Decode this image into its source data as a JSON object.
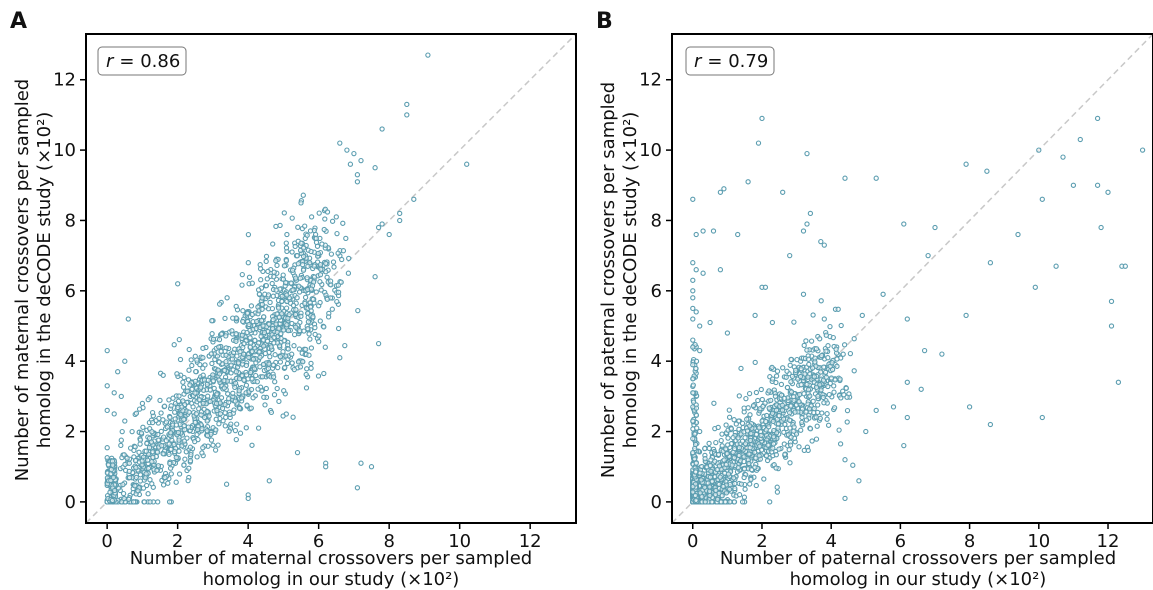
{
  "chart_data": [
    {
      "type": "scatter",
      "panel": "A",
      "r_symbol": "r",
      "r_value": "= 0.86",
      "xlabel_line1": "Number of maternal crossovers per sampled",
      "xlabel_line2": "homolog in our study (×10²)",
      "ylabel_line1": "Number of maternal crossovers per sampled",
      "ylabel_line2": "homolog in the deCODE study (×10²)",
      "xlim": [
        -0.6,
        13.3
      ],
      "ylim": [
        -0.6,
        13.3
      ],
      "xticks": [
        "0",
        "2",
        "4",
        "6",
        "8",
        "10",
        "12"
      ],
      "yticks": [
        "0",
        "2",
        "4",
        "6",
        "8",
        "10",
        "12"
      ],
      "diagonal": "y = x (dashed)",
      "point_color": "#5b9db0",
      "series": [
        {
          "values": [
            [
              9.1,
              12.7
            ],
            [
              8.5,
              11.3
            ],
            [
              8.5,
              11.0
            ],
            [
              6.6,
              10.2
            ],
            [
              7.8,
              10.6
            ],
            [
              6.8,
              10.0
            ],
            [
              7.0,
              9.9
            ],
            [
              7.2,
              9.7
            ],
            [
              6.9,
              9.6
            ],
            [
              7.1,
              9.3
            ],
            [
              7.1,
              9.1
            ],
            [
              7.6,
              9.5
            ],
            [
              10.2,
              9.6
            ],
            [
              8.7,
              8.6
            ],
            [
              5.5,
              8.5
            ],
            [
              5.8,
              8.1
            ],
            [
              6.5,
              8.1
            ],
            [
              8.3,
              8.2
            ],
            [
              8.3,
              8.0
            ],
            [
              7.8,
              7.9
            ],
            [
              7.7,
              7.8
            ],
            [
              8.0,
              7.6
            ],
            [
              7.7,
              4.5
            ],
            [
              7.6,
              6.4
            ],
            [
              6.6,
              4.1
            ],
            [
              7.2,
              1.1
            ],
            [
              7.5,
              1.0
            ],
            [
              7.1,
              0.4
            ],
            [
              6.2,
              1.1
            ],
            [
              6.2,
              1.0
            ],
            [
              4.6,
              0.6
            ],
            [
              4.0,
              0.2
            ],
            [
              4.0,
              0.1
            ],
            [
              0.6,
              5.2
            ],
            [
              0.0,
              4.3
            ],
            [
              0.0,
              3.3
            ],
            [
              0.2,
              3.1
            ],
            [
              2.0,
              6.2
            ],
            [
              0.5,
              4.0
            ],
            [
              0.3,
              3.7
            ],
            [
              0.0,
              2.6
            ],
            [
              0.4,
              3.0
            ],
            [
              1.0,
              2.8
            ],
            [
              0.2,
              2.5
            ],
            [
              0.5,
              2.3
            ],
            [
              5.4,
              1.4
            ]
          ]
        }
      ]
    },
    {
      "type": "scatter",
      "panel": "B",
      "r_symbol": "r",
      "r_value": "= 0.79",
      "xlabel_line1": "Number of paternal crossovers per sampled",
      "xlabel_line2": "homolog in our study (×10²)",
      "ylabel_line1": "Number of paternal crossovers per sampled",
      "ylabel_line2": "homolog in the deCODE study (×10²)",
      "xlim": [
        -0.6,
        13.3
      ],
      "ylim": [
        -0.6,
        13.3
      ],
      "xticks": [
        "0",
        "2",
        "4",
        "6",
        "8",
        "10",
        "12"
      ],
      "yticks": [
        "0",
        "2",
        "4",
        "6",
        "8",
        "10",
        "12"
      ],
      "diagonal": "y = x (dashed)",
      "point_color": "#5b9db0",
      "series": [
        {
          "values": [
            [
              2.0,
              10.9
            ],
            [
              11.7,
              10.9
            ],
            [
              1.9,
              10.2
            ],
            [
              11.2,
              10.3
            ],
            [
              10.0,
              10.0
            ],
            [
              13.0,
              10.0
            ],
            [
              3.3,
              9.9
            ],
            [
              0.0,
              8.6
            ],
            [
              0.9,
              8.9
            ],
            [
              0.8,
              8.8
            ],
            [
              1.6,
              9.1
            ],
            [
              2.6,
              8.8
            ],
            [
              4.4,
              9.2
            ],
            [
              5.3,
              9.2
            ],
            [
              7.9,
              9.6
            ],
            [
              8.5,
              9.4
            ],
            [
              10.7,
              9.8
            ],
            [
              11.0,
              9.0
            ],
            [
              11.7,
              9.0
            ],
            [
              12.0,
              8.8
            ],
            [
              10.1,
              8.6
            ],
            [
              3.4,
              8.2
            ],
            [
              3.3,
              7.9
            ],
            [
              3.2,
              7.7
            ],
            [
              3.7,
              7.4
            ],
            [
              3.8,
              7.3
            ],
            [
              2.8,
              7.0
            ],
            [
              6.1,
              7.9
            ],
            [
              6.8,
              7.0
            ],
            [
              7.0,
              7.8
            ],
            [
              9.4,
              7.6
            ],
            [
              11.8,
              7.8
            ],
            [
              0.1,
              7.6
            ],
            [
              0.3,
              7.7
            ],
            [
              0.6,
              7.7
            ],
            [
              1.3,
              7.6
            ],
            [
              0.0,
              6.8
            ],
            [
              0.1,
              6.6
            ],
            [
              0.0,
              6.3
            ],
            [
              0.3,
              6.5
            ],
            [
              0.8,
              6.6
            ],
            [
              2.0,
              6.1
            ],
            [
              2.1,
              6.1
            ],
            [
              3.2,
              5.9
            ],
            [
              5.5,
              5.9
            ],
            [
              8.6,
              6.8
            ],
            [
              10.5,
              6.7
            ],
            [
              12.4,
              6.7
            ],
            [
              12.5,
              6.7
            ],
            [
              12.1,
              5.7
            ],
            [
              12.1,
              5.0
            ],
            [
              12.3,
              3.4
            ],
            [
              0.0,
              6.0
            ],
            [
              0.0,
              5.8
            ],
            [
              0.0,
              5.5
            ],
            [
              0.0,
              5.2
            ],
            [
              0.1,
              5.4
            ],
            [
              0.2,
              5.0
            ],
            [
              0.5,
              5.1
            ],
            [
              1.0,
              4.8
            ],
            [
              1.8,
              5.3
            ],
            [
              2.3,
              5.1
            ],
            [
              3.8,
              5.2
            ],
            [
              4.9,
              5.3
            ],
            [
              6.2,
              5.2
            ],
            [
              7.9,
              5.3
            ],
            [
              9.9,
              6.1
            ],
            [
              6.7,
              4.3
            ],
            [
              7.2,
              4.2
            ],
            [
              0.0,
              4.6
            ],
            [
              0.0,
              4.4
            ],
            [
              0.2,
              4.3
            ],
            [
              0.0,
              3.9
            ],
            [
              0.0,
              3.5
            ],
            [
              0.0,
              3.1
            ],
            [
              0.0,
              2.7
            ],
            [
              0.0,
              2.3
            ],
            [
              0.2,
              2.0
            ],
            [
              0.0,
              1.8
            ],
            [
              0.0,
              1.4
            ],
            [
              0.1,
              1.1
            ],
            [
              6.2,
              3.4
            ],
            [
              6.6,
              3.2
            ],
            [
              8.0,
              2.7
            ],
            [
              8.6,
              2.2
            ],
            [
              10.1,
              2.4
            ],
            [
              5.8,
              2.7
            ],
            [
              6.2,
              2.4
            ],
            [
              5.0,
              2.0
            ],
            [
              6.1,
              1.6
            ],
            [
              4.4,
              1.2
            ],
            [
              4.4,
              0.1
            ],
            [
              4.8,
              0.6
            ],
            [
              5.3,
              2.6
            ]
          ]
        }
      ]
    }
  ]
}
